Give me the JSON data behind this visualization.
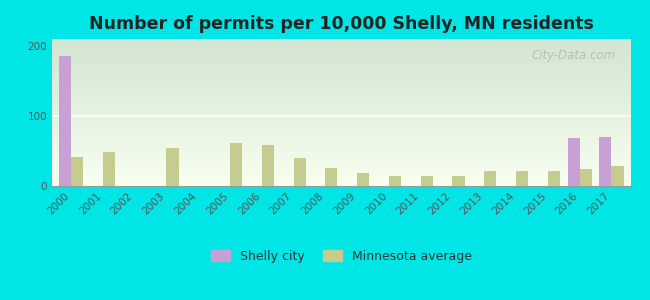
{
  "title": "Number of permits per 10,000 Shelly, MN residents",
  "years": [
    2000,
    2001,
    2002,
    2003,
    2004,
    2005,
    2006,
    2007,
    2008,
    2009,
    2010,
    2011,
    2012,
    2013,
    2014,
    2015,
    2016,
    2017
  ],
  "shelly_city": [
    186,
    0,
    0,
    0,
    0,
    0,
    0,
    0,
    0,
    0,
    0,
    0,
    0,
    0,
    0,
    0,
    68,
    70
  ],
  "mn_average": [
    42,
    48,
    0,
    55,
    0,
    62,
    58,
    40,
    26,
    18,
    15,
    14,
    15,
    22,
    22,
    22,
    24,
    28
  ],
  "shelly_color": "#c8a0d4",
  "mn_color": "#c5cc8e",
  "background_color": "#00e5e5",
  "ylim": [
    0,
    210
  ],
  "yticks": [
    0,
    100,
    200
  ],
  "bar_width": 0.38,
  "title_fontsize": 12.5,
  "tick_fontsize": 7.5,
  "legend_fontsize": 9,
  "watermark": "City-Data.com"
}
